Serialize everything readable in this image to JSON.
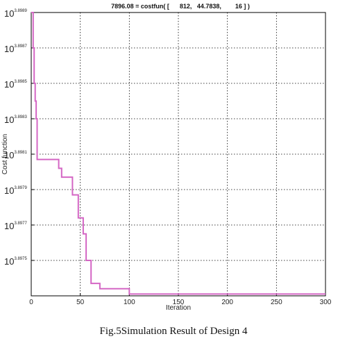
{
  "chart_data": {
    "type": "line",
    "title": "7896.08 = costfun( [      812,   44.7838,        16 ] )",
    "xlabel": "Iteration",
    "ylabel": "Cost function",
    "xlim": [
      0,
      300
    ],
    "ylim": [
      3.8973,
      3.8989
    ],
    "log_scale_y": true,
    "grid": true,
    "x_ticks": [
      0,
      50,
      100,
      150,
      200,
      250,
      300
    ],
    "y_ticks": [
      {
        "value": 3.8989,
        "base": "10",
        "exp": "3.8989"
      },
      {
        "value": 3.8987,
        "base": "10",
        "exp": "3.8987"
      },
      {
        "value": 3.8985,
        "base": "10",
        "exp": "3.8985"
      },
      {
        "value": 3.8983,
        "base": "10",
        "exp": "3.8983"
      },
      {
        "value": 3.8981,
        "base": "10",
        "exp": "3.8981"
      },
      {
        "value": 3.8979,
        "base": "10",
        "exp": "3.8979"
      },
      {
        "value": 3.8977,
        "base": "10",
        "exp": "3.8977"
      },
      {
        "value": 3.8975,
        "base": "10",
        "exp": "3.8975"
      }
    ],
    "series": [
      {
        "color": "#d466c4",
        "points": [
          [
            0,
            3.8989
          ],
          [
            2,
            3.8989
          ],
          [
            2,
            3.8987
          ],
          [
            3,
            3.8987
          ],
          [
            3,
            3.8985
          ],
          [
            4,
            3.8985
          ],
          [
            4,
            3.8984
          ],
          [
            5,
            3.8984
          ],
          [
            5,
            3.8983
          ],
          [
            6,
            3.8983
          ],
          [
            6,
            3.89807
          ],
          [
            28,
            3.89807
          ],
          [
            28,
            3.89802
          ],
          [
            31,
            3.89802
          ],
          [
            31,
            3.89797
          ],
          [
            42,
            3.89797
          ],
          [
            42,
            3.89787
          ],
          [
            48,
            3.89787
          ],
          [
            48,
            3.89774
          ],
          [
            53,
            3.89774
          ],
          [
            53,
            3.89765
          ],
          [
            56,
            3.89765
          ],
          [
            56,
            3.8975
          ],
          [
            61,
            3.8975
          ],
          [
            61,
            3.89737
          ],
          [
            70,
            3.89737
          ],
          [
            70,
            3.89734
          ],
          [
            100,
            3.89734
          ],
          [
            100,
            3.89731
          ],
          [
            300,
            3.89731
          ]
        ]
      }
    ]
  },
  "caption": "Fig.5Simulation Result of Design 4"
}
